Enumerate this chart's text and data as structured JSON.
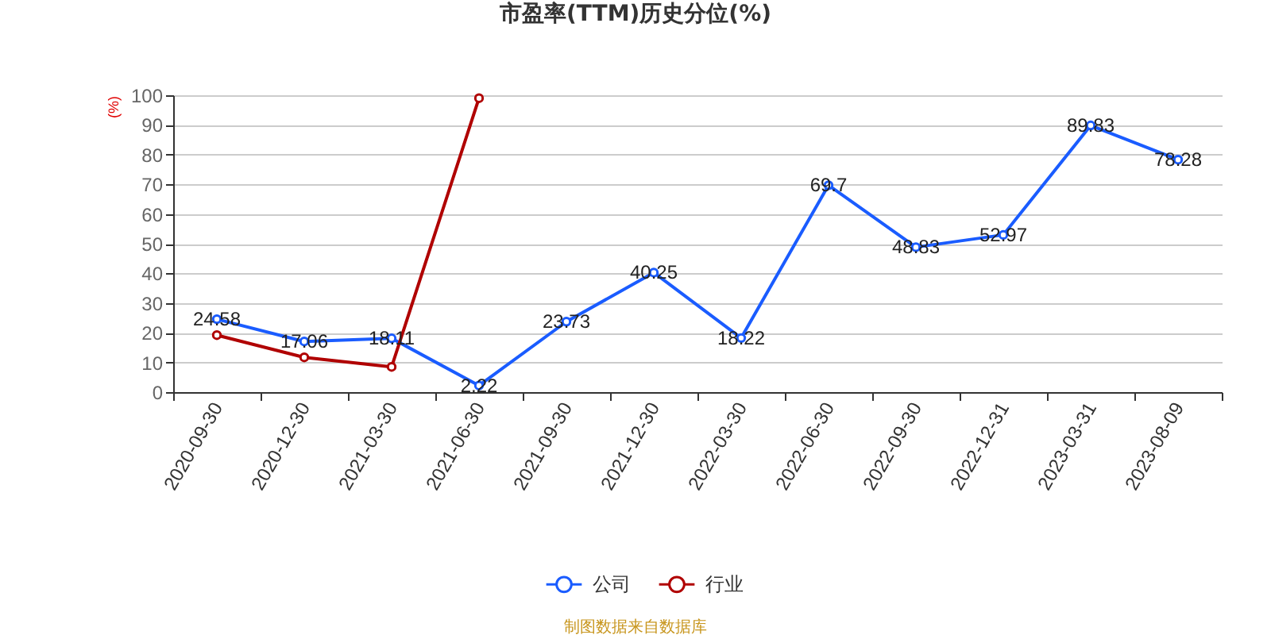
{
  "chart_data": {
    "type": "line",
    "title": "市盈率(TTM)历史分位(%)",
    "ylabel": "(%)",
    "categories": [
      "2020-09-30",
      "2020-12-30",
      "2021-03-30",
      "2021-06-30",
      "2021-09-30",
      "2021-12-30",
      "2022-03-30",
      "2022-06-30",
      "2022-09-30",
      "2022-12-31",
      "2023-03-31",
      "2023-08-09"
    ],
    "series": [
      {
        "name": "公司",
        "color": "#1a5cff",
        "values": [
          24.58,
          17.06,
          18.11,
          2.22,
          23.73,
          40.25,
          18.22,
          69.7,
          48.83,
          52.97,
          89.83,
          78.28
        ],
        "value_labels": [
          "24.58",
          "17.06",
          "18.11",
          "2.22",
          "23.73",
          "40.25",
          "18.22",
          "69.7",
          "48.83",
          "52.97",
          "89.83",
          "78.28"
        ]
      },
      {
        "name": "行业",
        "color": "#b00000",
        "values": [
          19.2,
          11.7,
          8.5,
          99,
          null,
          null,
          null,
          null,
          null,
          null,
          null,
          null
        ]
      }
    ],
    "ylim": [
      0,
      100
    ],
    "yticks": [
      0,
      10,
      20,
      30,
      40,
      50,
      60,
      70,
      80,
      90,
      100
    ],
    "grid": "y",
    "legend": "bottom",
    "marker": "circle",
    "line_style": "solid",
    "annotations": [
      "制图数据来自数据库"
    ]
  }
}
